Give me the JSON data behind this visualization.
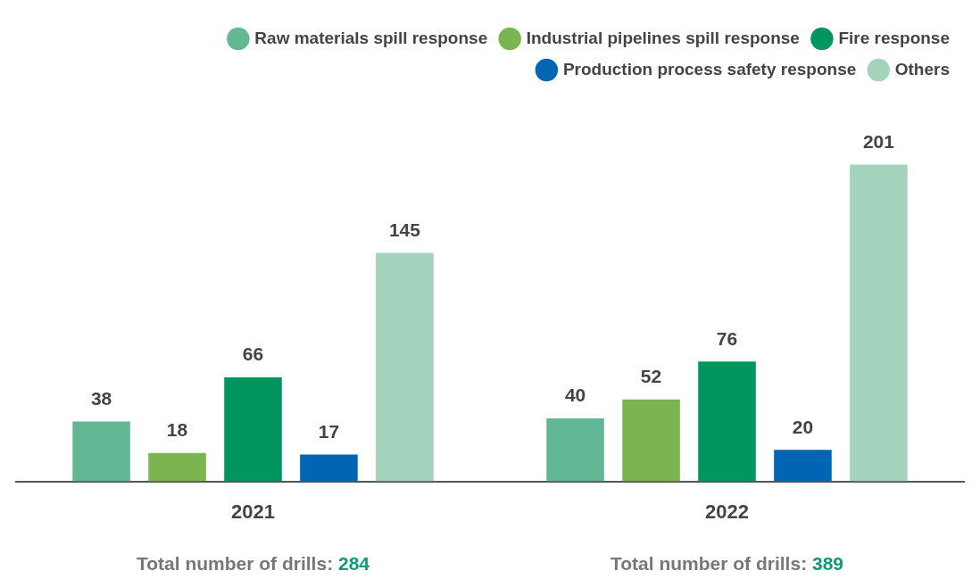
{
  "chart_data": {
    "type": "bar",
    "categories": [
      "2021",
      "2022"
    ],
    "series": [
      {
        "name": "Raw materials spill response",
        "color": "#62b795",
        "values": [
          38,
          40
        ]
      },
      {
        "name": "Industrial pipelines spill response",
        "color": "#7ab550",
        "values": [
          18,
          52
        ]
      },
      {
        "name": "Fire response",
        "color": "#00965e",
        "values": [
          66,
          76
        ]
      },
      {
        "name": "Production process safety response",
        "color": "#0066b3",
        "values": [
          17,
          20
        ]
      },
      {
        "name": "Others",
        "color": "#a3d3bc",
        "values": [
          145,
          201
        ]
      }
    ],
    "data_labels": true,
    "annotations": [
      "Total number of drills: 284",
      "Total number of drills: 389"
    ],
    "legend": "top right",
    "grid": false,
    "tick_labels": "x"
  }
}
